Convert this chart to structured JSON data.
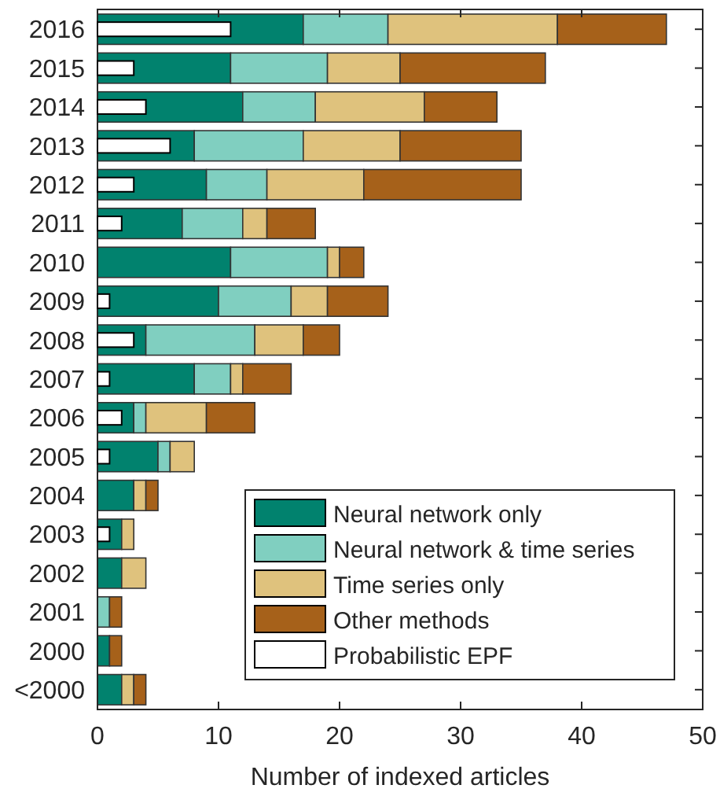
{
  "chart_data": [
    {
      "type": "bar",
      "orientation": "horizontal",
      "stacked": true,
      "xlabel": "Number of indexed articles",
      "categories": [
        "2016",
        "2015",
        "2014",
        "2013",
        "2012",
        "2011",
        "2010",
        "2009",
        "2008",
        "2007",
        "2006",
        "2005",
        "2004",
        "2003",
        "2002",
        "2001",
        "2000",
        "<2000"
      ],
      "xlim": [
        0,
        50
      ],
      "xticks": [
        0,
        10,
        20,
        30,
        40,
        50
      ],
      "legend": "bottom right",
      "series": [
        {
          "name": "Neural network only",
          "color": "#01826e",
          "values": [
            17,
            11,
            12,
            8,
            9,
            7,
            11,
            10,
            4,
            8,
            3,
            5,
            3,
            2,
            2,
            0,
            1,
            2
          ]
        },
        {
          "name": "Neural network & time series",
          "color": "#80cfc0",
          "values": [
            7,
            8,
            6,
            9,
            5,
            5,
            8,
            6,
            9,
            3,
            1,
            1,
            0,
            0,
            0,
            1,
            0,
            0
          ]
        },
        {
          "name": "Time series only",
          "color": "#dfc27d",
          "values": [
            14,
            6,
            9,
            8,
            8,
            2,
            1,
            3,
            4,
            1,
            5,
            2,
            1,
            1,
            2,
            0,
            0,
            1
          ]
        },
        {
          "name": "Other methods",
          "color": "#a6611a",
          "values": [
            9,
            12,
            6,
            10,
            13,
            4,
            2,
            5,
            3,
            4,
            4,
            0,
            1,
            0,
            0,
            1,
            1,
            1
          ]
        }
      ]
    },
    {
      "type": "bar",
      "orientation": "horizontal",
      "tick_labels": false,
      "legend": "bottom right",
      "categories": [
        null,
        null,
        null,
        null,
        null,
        null,
        null,
        null,
        null,
        null,
        null,
        null,
        null,
        null,
        null,
        null,
        null,
        null
      ],
      "xlim": [
        0,
        50
      ],
      "series": [
        {
          "name": "Probabilistic EPF",
          "color": "#ffffff",
          "values": [
            11,
            3,
            4,
            6,
            3,
            2,
            0,
            1,
            3,
            1,
            2,
            1,
            0,
            1,
            0,
            0,
            0,
            0
          ]
        }
      ]
    }
  ]
}
